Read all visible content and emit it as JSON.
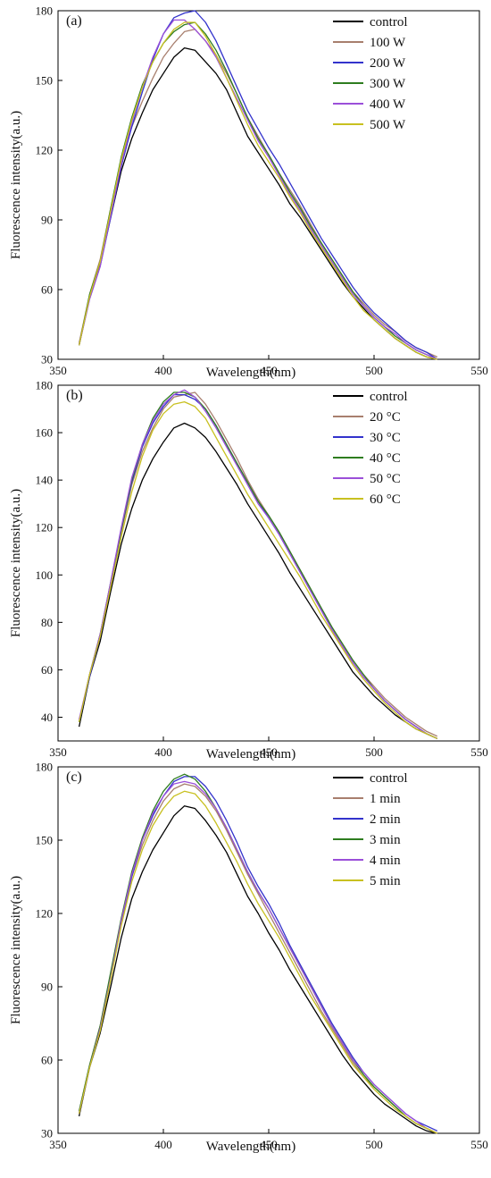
{
  "chart_data": [
    {
      "type": "line",
      "panel_label": "(a)",
      "xlabel": "Wavelength(nm)",
      "ylabel": "Fluorescence intensity(a.u.)",
      "xlim": [
        350,
        550
      ],
      "ylim": [
        30,
        180
      ],
      "xticks": [
        350,
        400,
        450,
        500,
        550
      ],
      "yticks": [
        30,
        60,
        90,
        120,
        150,
        180
      ],
      "legend_position": "top-right",
      "x": [
        360,
        365,
        370,
        375,
        380,
        385,
        390,
        395,
        400,
        405,
        410,
        415,
        420,
        425,
        430,
        435,
        440,
        445,
        450,
        455,
        460,
        465,
        470,
        475,
        480,
        485,
        490,
        495,
        500,
        505,
        510,
        515,
        520,
        525,
        530
      ],
      "series": [
        {
          "name": "control",
          "color": "#000000",
          "values": [
            36,
            57,
            71,
            91,
            111,
            125,
            136,
            146,
            153,
            160,
            164,
            163,
            158,
            153,
            146,
            136,
            126,
            119,
            112,
            105,
            97,
            91,
            84,
            77,
            70,
            63,
            57,
            52,
            47,
            43,
            39,
            36,
            33,
            31,
            30
          ]
        },
        {
          "name": "100 W",
          "color": "#a87f6e",
          "values": [
            37,
            58,
            73,
            95,
            116,
            130,
            141,
            151,
            160,
            166,
            171,
            172,
            167,
            161,
            153,
            144,
            134,
            126,
            118,
            110,
            103,
            96,
            88,
            80,
            73,
            66,
            59,
            54,
            49,
            45,
            42,
            38,
            35,
            33,
            31
          ]
        },
        {
          "name": "200 W",
          "color": "#3333cc",
          "values": [
            36,
            56,
            70,
            91,
            113,
            130,
            145,
            159,
            170,
            177,
            179,
            180,
            175,
            167,
            157,
            147,
            137,
            129,
            121,
            114,
            106,
            98,
            90,
            82,
            75,
            68,
            61,
            55,
            50,
            46,
            42,
            38,
            35,
            33,
            30
          ]
        },
        {
          "name": "300 W",
          "color": "#2e7d1f",
          "values": [
            36,
            58,
            72,
            95,
            117,
            134,
            148,
            158,
            166,
            171,
            174,
            175,
            170,
            163,
            154,
            144,
            134,
            125,
            118,
            110,
            102,
            95,
            87,
            80,
            73,
            66,
            59,
            53,
            48,
            44,
            40,
            37,
            34,
            32,
            30
          ]
        },
        {
          "name": "400 W",
          "color": "#9b4fd9",
          "values": [
            36,
            56,
            70,
            92,
            114,
            132,
            147,
            160,
            170,
            176,
            176,
            172,
            167,
            160,
            151,
            142,
            133,
            124,
            117,
            109,
            101,
            94,
            86,
            79,
            72,
            65,
            58,
            53,
            48,
            44,
            41,
            37,
            34,
            32,
            30
          ]
        },
        {
          "name": "500 W",
          "color": "#c8c020",
          "values": [
            36,
            57,
            72,
            94,
            116,
            133,
            147,
            158,
            166,
            172,
            175,
            175,
            169,
            161,
            151,
            141,
            131,
            122,
            115,
            108,
            100,
            93,
            85,
            78,
            71,
            64,
            57,
            51,
            47,
            43,
            39,
            36,
            33,
            31,
            30
          ]
        }
      ]
    },
    {
      "type": "line",
      "panel_label": "(b)",
      "xlabel": "Wavelength(nm)",
      "ylabel": "Fluorescence intensity(a.u.)",
      "xlim": [
        350,
        550
      ],
      "ylim": [
        30,
        180
      ],
      "xticks": [
        350,
        400,
        450,
        500,
        550
      ],
      "yticks": [
        40,
        60,
        80,
        100,
        120,
        140,
        160,
        180
      ],
      "legend_position": "top-right",
      "x": [
        360,
        365,
        370,
        375,
        380,
        385,
        390,
        395,
        400,
        405,
        410,
        415,
        420,
        425,
        430,
        435,
        440,
        445,
        450,
        455,
        460,
        465,
        470,
        475,
        480,
        485,
        490,
        495,
        500,
        505,
        510,
        515,
        520,
        525,
        530
      ],
      "series": [
        {
          "name": "control",
          "color": "#000000",
          "values": [
            36,
            57,
            72,
            93,
            113,
            128,
            140,
            149,
            156,
            162,
            164,
            162,
            158,
            152,
            145,
            138,
            130,
            123,
            116,
            109,
            101,
            94,
            87,
            80,
            73,
            66,
            59,
            54,
            49,
            45,
            41,
            38,
            35,
            33,
            31
          ]
        },
        {
          "name": "20 °C",
          "color": "#a87f6e",
          "values": [
            38,
            58,
            75,
            96,
            118,
            138,
            152,
            162,
            170,
            175,
            176,
            177,
            172,
            165,
            157,
            149,
            140,
            132,
            125,
            118,
            110,
            102,
            94,
            86,
            78,
            71,
            64,
            58,
            53,
            48,
            44,
            40,
            37,
            34,
            32
          ]
        },
        {
          "name": "30 °C",
          "color": "#3333cc",
          "values": [
            38,
            57,
            74,
            96,
            119,
            139,
            154,
            164,
            171,
            176,
            176,
            174,
            170,
            163,
            155,
            147,
            139,
            131,
            124,
            117,
            109,
            101,
            93,
            85,
            77,
            70,
            63,
            57,
            52,
            47,
            43,
            39,
            36,
            33,
            31
          ]
        },
        {
          "name": "40 °C",
          "color": "#2e7d1f",
          "values": [
            38,
            58,
            75,
            97,
            119,
            140,
            155,
            166,
            173,
            177,
            177,
            175,
            170,
            163,
            155,
            147,
            139,
            131,
            125,
            118,
            110,
            102,
            94,
            86,
            78,
            71,
            64,
            58,
            52,
            47,
            43,
            39,
            36,
            33,
            31
          ]
        },
        {
          "name": "50 °C",
          "color": "#9b4fd9",
          "values": [
            39,
            58,
            75,
            97,
            120,
            141,
            155,
            165,
            172,
            176,
            178,
            175,
            169,
            162,
            154,
            146,
            138,
            130,
            124,
            117,
            109,
            101,
            93,
            85,
            77,
            70,
            63,
            57,
            52,
            47,
            43,
            39,
            36,
            33,
            31
          ]
        },
        {
          "name": "60 °C",
          "color": "#c8c020",
          "values": [
            38,
            58,
            74,
            95,
            116,
            135,
            150,
            161,
            168,
            172,
            173,
            171,
            166,
            158,
            150,
            142,
            134,
            127,
            120,
            113,
            106,
            99,
            91,
            83,
            76,
            69,
            62,
            56,
            51,
            46,
            42,
            38,
            35,
            33,
            31
          ]
        }
      ]
    },
    {
      "type": "line",
      "panel_label": "(c)",
      "xlabel": "Wavelength(nm)",
      "ylabel": "Fluorescence intensity(a.u.)",
      "xlim": [
        350,
        550
      ],
      "ylim": [
        30,
        180
      ],
      "xticks": [
        350,
        400,
        450,
        500,
        550
      ],
      "yticks": [
        30,
        60,
        90,
        120,
        150,
        180
      ],
      "legend_position": "top-right",
      "x": [
        360,
        365,
        370,
        375,
        380,
        385,
        390,
        395,
        400,
        405,
        410,
        415,
        420,
        425,
        430,
        435,
        440,
        445,
        450,
        455,
        460,
        465,
        470,
        475,
        480,
        485,
        490,
        495,
        500,
        505,
        510,
        515,
        520,
        525,
        530
      ],
      "series": [
        {
          "name": "control",
          "color": "#000000",
          "values": [
            37,
            57,
            71,
            90,
            110,
            126,
            137,
            146,
            153,
            160,
            164,
            163,
            158,
            152,
            145,
            136,
            127,
            120,
            112,
            105,
            97,
            90,
            83,
            76,
            69,
            62,
            56,
            51,
            46,
            42,
            39,
            36,
            33,
            31,
            30
          ]
        },
        {
          "name": "1 min",
          "color": "#a87f6e",
          "values": [
            39,
            58,
            74,
            95,
            117,
            135,
            148,
            158,
            166,
            171,
            173,
            172,
            168,
            162,
            154,
            145,
            136,
            128,
            120,
            112,
            104,
            96,
            88,
            80,
            73,
            66,
            59,
            53,
            49,
            45,
            41,
            37,
            34,
            32,
            30
          ]
        },
        {
          "name": "2 min",
          "color": "#3333cc",
          "values": [
            38,
            57,
            73,
            94,
            116,
            135,
            150,
            160,
            168,
            174,
            176,
            176,
            172,
            166,
            158,
            149,
            139,
            131,
            124,
            116,
            107,
            99,
            91,
            83,
            75,
            68,
            61,
            55,
            50,
            46,
            42,
            38,
            35,
            33,
            31
          ]
        },
        {
          "name": "3 min",
          "color": "#2e7d1f",
          "values": [
            39,
            58,
            74,
            96,
            118,
            137,
            151,
            162,
            170,
            175,
            177,
            175,
            170,
            163,
            155,
            146,
            137,
            129,
            122,
            114,
            106,
            98,
            90,
            82,
            74,
            67,
            60,
            54,
            49,
            45,
            41,
            37,
            34,
            32,
            30
          ]
        },
        {
          "name": "4 min",
          "color": "#9b4fd9",
          "values": [
            38,
            57,
            73,
            94,
            117,
            136,
            150,
            161,
            168,
            173,
            174,
            173,
            169,
            163,
            155,
            146,
            137,
            129,
            122,
            114,
            106,
            98,
            90,
            82,
            74,
            67,
            60,
            55,
            50,
            46,
            42,
            38,
            35,
            32,
            30
          ]
        },
        {
          "name": "5 min",
          "color": "#c8c020",
          "values": [
            38,
            57,
            72,
            93,
            115,
            133,
            146,
            156,
            163,
            168,
            170,
            169,
            164,
            157,
            149,
            141,
            132,
            124,
            117,
            110,
            102,
            94,
            86,
            79,
            72,
            65,
            58,
            53,
            48,
            44,
            40,
            37,
            34,
            32,
            30
          ]
        }
      ]
    }
  ]
}
